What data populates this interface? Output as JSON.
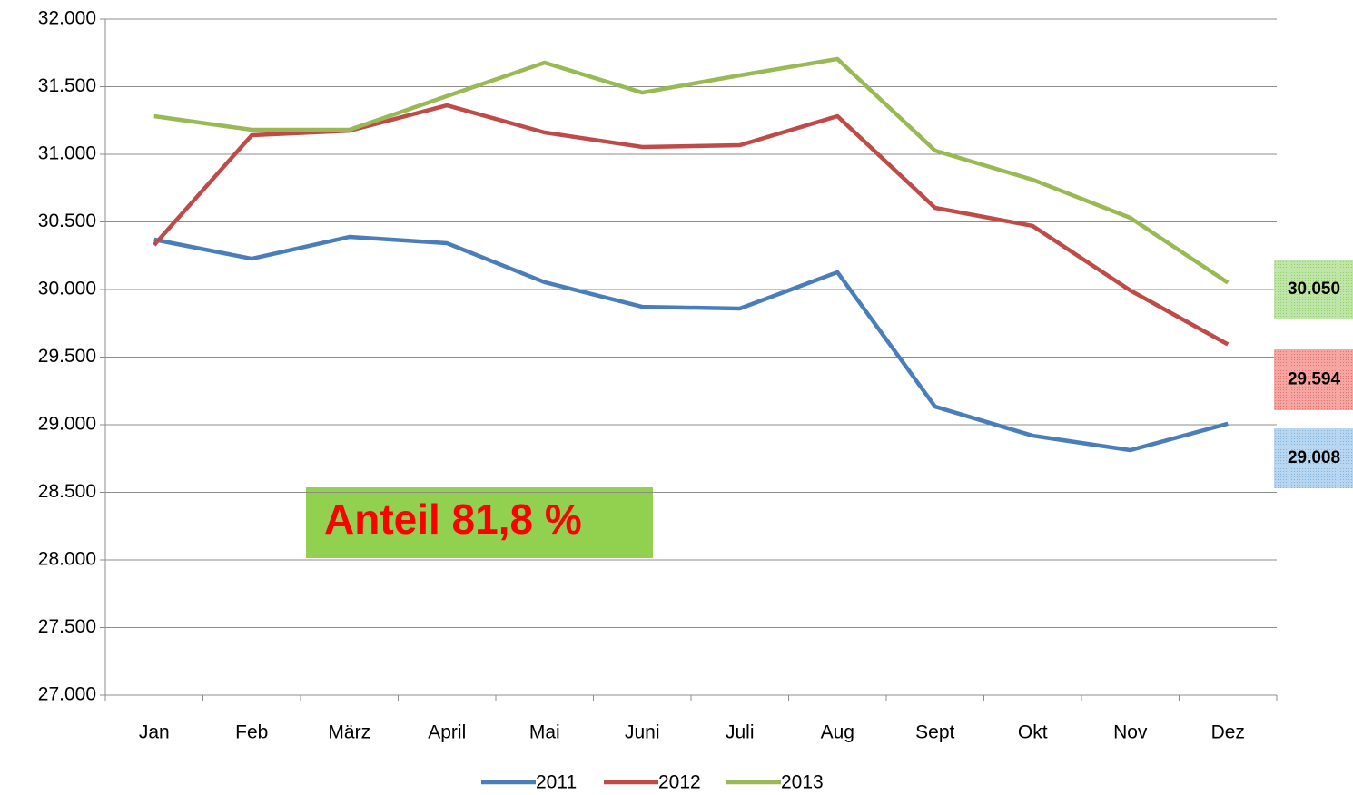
{
  "chart_data": {
    "type": "line",
    "categories": [
      "Jan",
      "Feb",
      "März",
      "April",
      "Mai",
      "Juni",
      "Juli",
      "Aug",
      "Sept",
      "Okt",
      "Nov",
      "Dez"
    ],
    "series": [
      {
        "name": "2011",
        "color": "#4a7ebb",
        "values": [
          30369,
          30228,
          30389,
          30342,
          30054,
          29872,
          29859,
          30128,
          29134,
          28919,
          28812,
          29008
        ],
        "value_labels": [
          null,
          null,
          null,
          null,
          null,
          null,
          null,
          null,
          null,
          null,
          null,
          "29.008"
        ]
      },
      {
        "name": "2012",
        "color": "#be4b48",
        "values": [
          30329,
          31141,
          31174,
          31362,
          31161,
          31054,
          31067,
          31282,
          30604,
          30470,
          29993,
          29594
        ],
        "value_labels": [
          null,
          null,
          null,
          null,
          null,
          null,
          null,
          null,
          null,
          null,
          null,
          "29.594"
        ]
      },
      {
        "name": "2013",
        "color": "#98b954",
        "values": [
          31282,
          31181,
          31181,
          31430,
          31678,
          31456,
          31584,
          31705,
          31027,
          30812,
          30530,
          30050
        ],
        "value_labels": [
          null,
          null,
          null,
          null,
          null,
          null,
          null,
          null,
          null,
          null,
          null,
          "30.050"
        ]
      }
    ],
    "ylim": [
      27000,
      32000
    ],
    "yticks": [
      {
        "value": 27000,
        "label": "27.000"
      },
      {
        "value": 27500,
        "label": "27.500"
      },
      {
        "value": 28000,
        "label": "28.000"
      },
      {
        "value": 28500,
        "label": "28.500"
      },
      {
        "value": 29000,
        "label": "29.000"
      },
      {
        "value": 29500,
        "label": "29.500"
      },
      {
        "value": 30000,
        "label": "30.000"
      },
      {
        "value": 30500,
        "label": "30.500"
      },
      {
        "value": 31000,
        "label": "31.000"
      },
      {
        "value": 31500,
        "label": "31.500"
      },
      {
        "value": 32000,
        "label": "32.000"
      }
    ],
    "grid": true,
    "legend": "bottom",
    "annotation": "Anteil 81,8 %"
  }
}
